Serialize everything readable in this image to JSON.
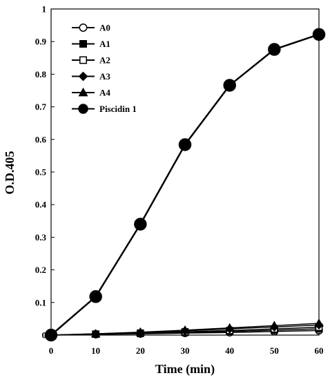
{
  "chart_data": {
    "type": "line",
    "xlabel": "Time (min)",
    "ylabel": "O.D.405",
    "xlim": [
      0,
      60
    ],
    "ylim": [
      0,
      1
    ],
    "xticks": [
      "0",
      "10",
      "20",
      "30",
      "40",
      "50",
      "60"
    ],
    "yticks": [
      "0",
      "0.1",
      "0.2",
      "0.3",
      "0.4",
      "0.5",
      "0.6",
      "0.7",
      "0.8",
      "0.9",
      "1"
    ],
    "grid": false,
    "legend_position": "top-left",
    "series": [
      {
        "name": "A0",
        "marker": "open-circle",
        "x": [
          0,
          10,
          20,
          30,
          40,
          50,
          60
        ],
        "y": [
          0.0,
          0.002,
          0.004,
          0.006,
          0.008,
          0.011,
          0.014
        ]
      },
      {
        "name": "A1",
        "marker": "filled-square",
        "x": [
          0,
          10,
          20,
          30,
          40,
          50,
          60
        ],
        "y": [
          0.0,
          0.003,
          0.005,
          0.008,
          0.011,
          0.015,
          0.019
        ]
      },
      {
        "name": "A2",
        "marker": "open-square",
        "x": [
          0,
          10,
          20,
          30,
          40,
          50,
          60
        ],
        "y": [
          0.0,
          0.003,
          0.006,
          0.01,
          0.014,
          0.019,
          0.024
        ]
      },
      {
        "name": "A3",
        "marker": "filled-diamond",
        "x": [
          0,
          10,
          20,
          30,
          40,
          50,
          60
        ],
        "y": [
          0.0,
          0.004,
          0.008,
          0.013,
          0.019,
          0.025,
          0.031
        ]
      },
      {
        "name": "A4",
        "marker": "filled-triangle",
        "x": [
          0,
          10,
          20,
          30,
          40,
          50,
          60
        ],
        "y": [
          0.0,
          0.004,
          0.009,
          0.015,
          0.022,
          0.029,
          0.036
        ]
      },
      {
        "name": "Piscidin 1",
        "marker": "filled-circle",
        "x": [
          0,
          10,
          20,
          30,
          40,
          50,
          60
        ],
        "y": [
          0.0,
          0.118,
          0.34,
          0.584,
          0.766,
          0.876,
          0.922
        ]
      }
    ]
  }
}
